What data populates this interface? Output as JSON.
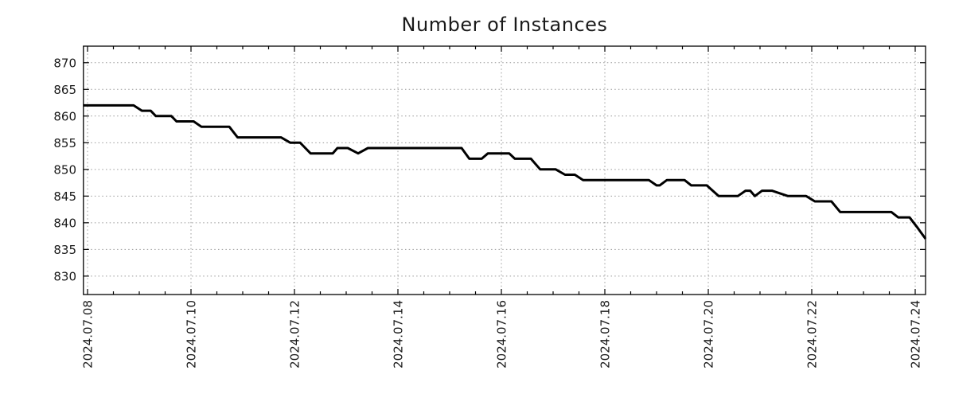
{
  "chart_data": {
    "type": "line",
    "title": "Number of Instances",
    "legend_position": "none",
    "x_axis": {
      "unit": "days since 2024-07-08",
      "tick_labels": [
        "2024.07.08",
        "2024.07.10",
        "2024.07.12",
        "2024.07.14",
        "2024.07.16",
        "2024.07.18",
        "2024.07.20",
        "2024.07.22",
        "2024.07.24"
      ],
      "tick_positions_days": [
        0,
        2,
        4,
        6,
        8,
        10,
        12,
        14,
        16
      ],
      "minor_tick_step_days": 0.5,
      "range_days": [
        -0.08,
        16.2
      ],
      "label_rotation_deg": -90
    },
    "y_axis": {
      "ticks": [
        830,
        835,
        840,
        845,
        850,
        855,
        860,
        865,
        870
      ],
      "tick_labels": [
        "830",
        "835",
        "840",
        "845",
        "850",
        "855",
        "860",
        "865",
        "870"
      ],
      "range": [
        826.55,
        873.1
      ]
    },
    "grid": {
      "on": true,
      "style": "dotted",
      "color": "#999999"
    },
    "border_color": "#000000",
    "background_color": "#ffffff",
    "series": [
      {
        "name": "instances",
        "color": "#000000",
        "line_width": 3,
        "points": [
          [
            -0.08,
            862
          ],
          [
            0.89,
            862
          ],
          [
            1.05,
            861
          ],
          [
            1.22,
            861
          ],
          [
            1.32,
            860
          ],
          [
            1.62,
            860
          ],
          [
            1.72,
            859
          ],
          [
            2.05,
            859
          ],
          [
            2.2,
            858
          ],
          [
            2.74,
            858
          ],
          [
            2.9,
            856
          ],
          [
            3.74,
            856
          ],
          [
            3.92,
            855
          ],
          [
            4.11,
            855
          ],
          [
            4.31,
            853
          ],
          [
            4.74,
            853
          ],
          [
            4.83,
            854
          ],
          [
            5.03,
            854
          ],
          [
            5.23,
            853
          ],
          [
            5.42,
            854
          ],
          [
            7.23,
            854
          ],
          [
            7.38,
            852
          ],
          [
            7.62,
            852
          ],
          [
            7.74,
            853
          ],
          [
            8.15,
            853
          ],
          [
            8.26,
            852
          ],
          [
            8.57,
            852
          ],
          [
            8.75,
            850
          ],
          [
            9.05,
            850
          ],
          [
            9.23,
            849
          ],
          [
            9.42,
            849
          ],
          [
            9.58,
            848
          ],
          [
            10.85,
            848
          ],
          [
            11.0,
            847
          ],
          [
            11.06,
            847
          ],
          [
            11.2,
            848
          ],
          [
            11.54,
            848
          ],
          [
            11.67,
            847
          ],
          [
            11.97,
            847
          ],
          [
            12.2,
            845
          ],
          [
            12.57,
            845
          ],
          [
            12.72,
            846
          ],
          [
            12.81,
            846
          ],
          [
            12.9,
            845
          ],
          [
            13.04,
            846
          ],
          [
            13.23,
            846
          ],
          [
            13.54,
            845
          ],
          [
            13.89,
            845
          ],
          [
            14.06,
            844
          ],
          [
            14.38,
            844
          ],
          [
            14.55,
            842
          ],
          [
            15.54,
            842
          ],
          [
            15.67,
            841
          ],
          [
            15.89,
            841
          ],
          [
            16.05,
            839
          ],
          [
            16.2,
            837
          ]
        ]
      }
    ]
  }
}
